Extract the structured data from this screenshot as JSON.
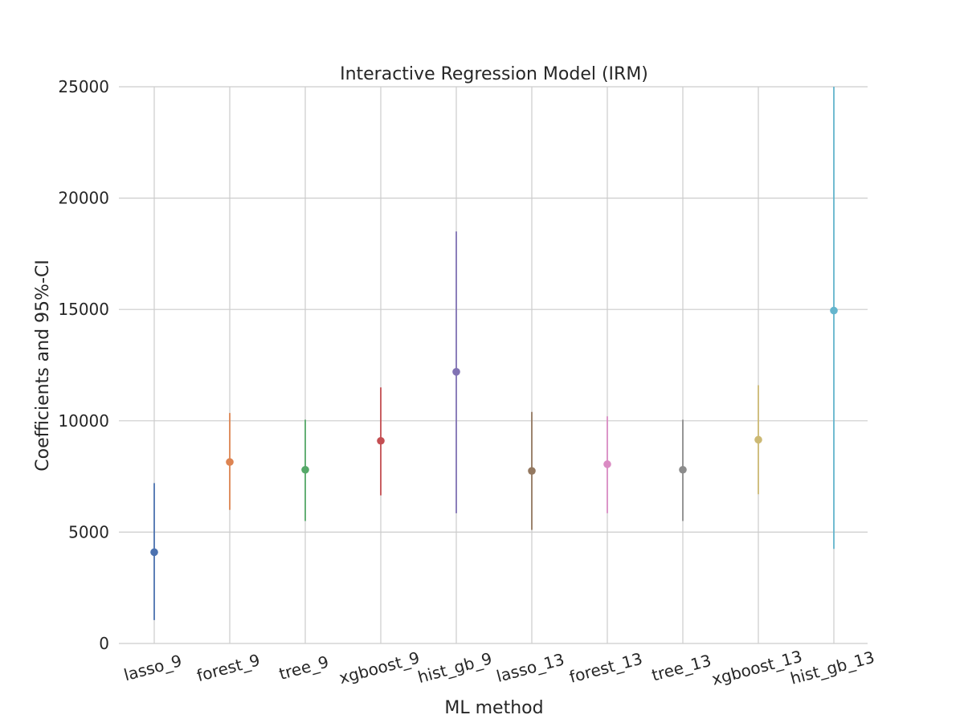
{
  "chart_data": {
    "type": "errorbar",
    "title": "Interactive Regression Model (IRM)",
    "xlabel": "ML method",
    "ylabel": "Coefficients and 95%-CI",
    "ylim": [
      0,
      25000
    ],
    "yticks": [
      0,
      5000,
      10000,
      15000,
      20000,
      25000
    ],
    "grid": true,
    "categories": [
      "lasso_9",
      "forest_9",
      "tree_9",
      "xgboost_9",
      "hist_gb_9",
      "lasso_13",
      "forest_13",
      "tree_13",
      "xgboost_13",
      "hist_gb_13"
    ],
    "series": [
      {
        "values": [
          4100,
          8150,
          7800,
          9100,
          12200,
          7750,
          8050,
          7800,
          9150,
          14950
        ],
        "lower": [
          1050,
          6000,
          5500,
          6650,
          5850,
          5100,
          5850,
          5500,
          6700,
          4250
        ],
        "upper": [
          7200,
          10350,
          10050,
          11500,
          18500,
          10400,
          10200,
          10050,
          11600,
          25000
        ],
        "colors": [
          "#4c72b0",
          "#dd8452",
          "#55a868",
          "#c44e52",
          "#8172b3",
          "#937860",
          "#da8bc3",
          "#8c8c8c",
          "#ccb974",
          "#64b5cd"
        ]
      }
    ]
  }
}
